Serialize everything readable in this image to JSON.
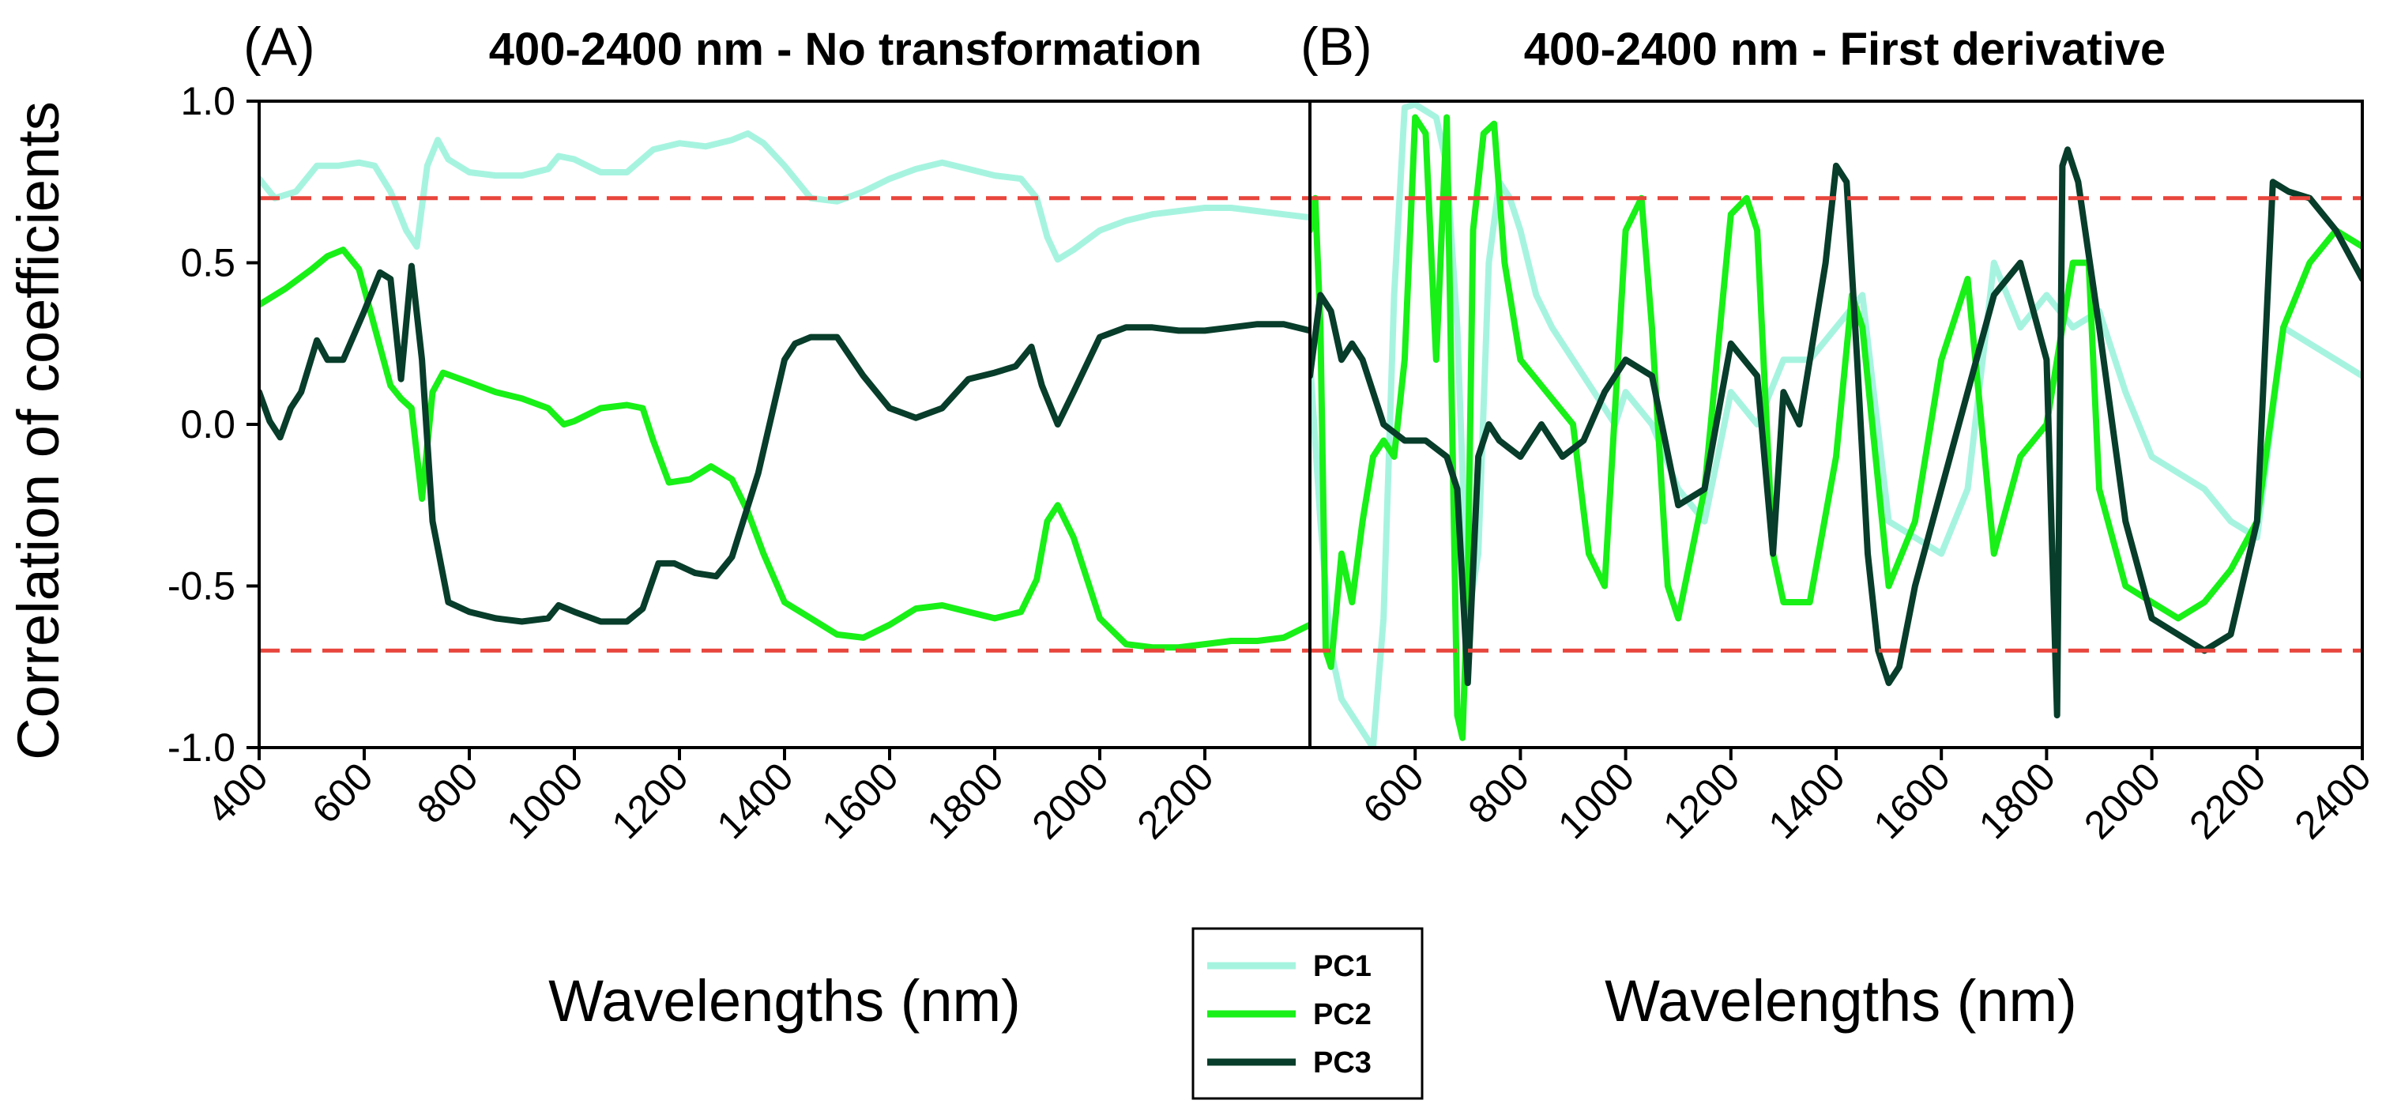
{
  "colors": {
    "PC1": "#a6f4e0",
    "PC2": "#18f018",
    "PC3": "#073d2a",
    "threshold": "#e8453c"
  },
  "ylabel": "Correlation of coefficients",
  "legend": {
    "placement": "bottom-center",
    "entries": [
      "PC1",
      "PC2",
      "PC3"
    ]
  },
  "chart_data": [
    {
      "type": "line",
      "panel_letter": "(A)",
      "title": "400-2400 nm - No transformation",
      "xlabel": "Wavelengths (nm)",
      "ylabel": "Correlation of coefficients",
      "xlim": [
        400,
        2400
      ],
      "ylim": [
        -1.0,
        1.0
      ],
      "xticks": [
        400,
        600,
        800,
        1000,
        1200,
        1400,
        1600,
        1800,
        2000,
        2200
      ],
      "yticks": [
        1.0,
        0.5,
        0.0,
        -0.5,
        -1.0
      ],
      "ytick_labels": [
        "1.0",
        "0.5",
        "0.0",
        "-0.5",
        "-1.0"
      ],
      "thresholds": [
        0.7,
        -0.7
      ],
      "grid": false,
      "series": [
        {
          "name": "PC1",
          "x": [
            400,
            430,
            470,
            510,
            550,
            590,
            620,
            650,
            680,
            700,
            720,
            740,
            760,
            800,
            850,
            900,
            950,
            970,
            1000,
            1050,
            1100,
            1150,
            1200,
            1250,
            1300,
            1330,
            1360,
            1400,
            1450,
            1500,
            1550,
            1600,
            1650,
            1700,
            1750,
            1800,
            1850,
            1880,
            1900,
            1920,
            1950,
            2000,
            2050,
            2100,
            2150,
            2200,
            2250,
            2300,
            2350,
            2400
          ],
          "y": [
            0.76,
            0.7,
            0.72,
            0.8,
            0.8,
            0.81,
            0.8,
            0.72,
            0.6,
            0.55,
            0.8,
            0.88,
            0.82,
            0.78,
            0.77,
            0.77,
            0.79,
            0.83,
            0.82,
            0.78,
            0.78,
            0.85,
            0.87,
            0.86,
            0.88,
            0.9,
            0.87,
            0.8,
            0.7,
            0.69,
            0.72,
            0.76,
            0.79,
            0.81,
            0.79,
            0.77,
            0.76,
            0.7,
            0.58,
            0.51,
            0.54,
            0.6,
            0.63,
            0.65,
            0.66,
            0.67,
            0.67,
            0.66,
            0.65,
            0.64
          ]
        },
        {
          "name": "PC2",
          "x": [
            400,
            450,
            500,
            530,
            560,
            590,
            620,
            650,
            670,
            690,
            710,
            730,
            750,
            800,
            850,
            900,
            950,
            980,
            1000,
            1050,
            1100,
            1130,
            1150,
            1180,
            1220,
            1260,
            1300,
            1330,
            1360,
            1400,
            1450,
            1500,
            1550,
            1600,
            1650,
            1700,
            1750,
            1800,
            1850,
            1880,
            1900,
            1920,
            1950,
            2000,
            2050,
            2100,
            2150,
            2200,
            2250,
            2300,
            2350,
            2400
          ],
          "y": [
            0.37,
            0.42,
            0.48,
            0.52,
            0.54,
            0.48,
            0.3,
            0.12,
            0.08,
            0.05,
            -0.23,
            0.1,
            0.16,
            0.13,
            0.1,
            0.08,
            0.05,
            0.0,
            0.01,
            0.05,
            0.06,
            0.05,
            -0.05,
            -0.18,
            -0.17,
            -0.13,
            -0.17,
            -0.27,
            -0.4,
            -0.55,
            -0.6,
            -0.65,
            -0.66,
            -0.62,
            -0.57,
            -0.56,
            -0.58,
            -0.6,
            -0.58,
            -0.48,
            -0.3,
            -0.25,
            -0.35,
            -0.6,
            -0.68,
            -0.69,
            -0.69,
            -0.68,
            -0.67,
            -0.67,
            -0.66,
            -0.62
          ]
        },
        {
          "name": "PC3",
          "x": [
            400,
            420,
            440,
            460,
            480,
            510,
            530,
            560,
            600,
            630,
            650,
            670,
            690,
            710,
            730,
            760,
            800,
            850,
            900,
            950,
            970,
            1000,
            1050,
            1100,
            1130,
            1160,
            1190,
            1230,
            1270,
            1300,
            1350,
            1400,
            1420,
            1450,
            1500,
            1550,
            1600,
            1650,
            1700,
            1750,
            1800,
            1840,
            1870,
            1890,
            1920,
            1950,
            2000,
            2050,
            2100,
            2150,
            2200,
            2250,
            2300,
            2350,
            2400
          ],
          "y": [
            0.1,
            0.01,
            -0.04,
            0.05,
            0.1,
            0.26,
            0.2,
            0.2,
            0.35,
            0.47,
            0.45,
            0.14,
            0.49,
            0.2,
            -0.3,
            -0.55,
            -0.58,
            -0.6,
            -0.61,
            -0.6,
            -0.56,
            -0.58,
            -0.61,
            -0.61,
            -0.57,
            -0.43,
            -0.43,
            -0.46,
            -0.47,
            -0.41,
            -0.15,
            0.2,
            0.25,
            0.27,
            0.27,
            0.15,
            0.05,
            0.02,
            0.05,
            0.14,
            0.16,
            0.18,
            0.24,
            0.12,
            0.0,
            0.1,
            0.27,
            0.3,
            0.3,
            0.29,
            0.29,
            0.3,
            0.31,
            0.31,
            0.29
          ]
        }
      ]
    },
    {
      "type": "line",
      "panel_letter": "(B)",
      "title": "400-2400 nm - First derivative",
      "xlabel": "Wavelengths (nm)",
      "ylabel": "",
      "xlim": [
        400,
        2400
      ],
      "ylim": [
        -1.0,
        1.0
      ],
      "xticks": [
        600,
        800,
        1000,
        1200,
        1400,
        1600,
        1800,
        2000,
        2200,
        2400
      ],
      "thresholds": [
        0.7,
        -0.7
      ],
      "grid": false,
      "series": [
        {
          "name": "PC1",
          "x": [
            400,
            420,
            440,
            460,
            480,
            500,
            520,
            540,
            560,
            580,
            600,
            620,
            640,
            660,
            680,
            700,
            720,
            740,
            760,
            780,
            800,
            830,
            860,
            900,
            940,
            980,
            1000,
            1050,
            1100,
            1150,
            1200,
            1250,
            1300,
            1350,
            1400,
            1450,
            1500,
            1550,
            1600,
            1650,
            1700,
            1750,
            1800,
            1850,
            1900,
            1950,
            2000,
            2050,
            2100,
            2150,
            2200,
            2250,
            2300,
            2350,
            2400
          ],
          "y": [
            0.2,
            -0.3,
            -0.7,
            -0.85,
            -0.9,
            -0.95,
            -1.0,
            -0.6,
            0.4,
            0.98,
            0.99,
            0.97,
            0.95,
            0.8,
            0.3,
            -0.6,
            -0.4,
            0.5,
            0.75,
            0.7,
            0.6,
            0.4,
            0.3,
            0.2,
            0.1,
            0.0,
            0.1,
            0.0,
            -0.2,
            -0.3,
            0.1,
            0.0,
            0.2,
            0.2,
            0.3,
            0.4,
            -0.3,
            -0.35,
            -0.4,
            -0.2,
            0.5,
            0.3,
            0.4,
            0.3,
            0.35,
            0.1,
            -0.1,
            -0.15,
            -0.2,
            -0.3,
            -0.35,
            0.3,
            0.25,
            0.2,
            0.15
          ]
        },
        {
          "name": "PC2",
          "x": [
            400,
            410,
            420,
            430,
            440,
            460,
            480,
            500,
            520,
            540,
            560,
            580,
            600,
            620,
            640,
            660,
            680,
            690,
            700,
            710,
            730,
            750,
            770,
            800,
            850,
            900,
            930,
            960,
            1000,
            1030,
            1050,
            1080,
            1100,
            1150,
            1200,
            1230,
            1250,
            1280,
            1300,
            1350,
            1400,
            1430,
            1450,
            1500,
            1550,
            1600,
            1650,
            1700,
            1750,
            1800,
            1850,
            1880,
            1900,
            1950,
            2000,
            2050,
            2100,
            2150,
            2200,
            2250,
            2300,
            2350,
            2400
          ],
          "y": [
            0.6,
            0.7,
            0.3,
            -0.7,
            -0.75,
            -0.4,
            -0.55,
            -0.3,
            -0.1,
            -0.05,
            -0.1,
            0.2,
            0.95,
            0.9,
            0.2,
            0.95,
            -0.9,
            -0.97,
            -0.5,
            0.6,
            0.9,
            0.93,
            0.5,
            0.2,
            0.1,
            0.0,
            -0.4,
            -0.5,
            0.6,
            0.7,
            0.3,
            -0.5,
            -0.6,
            -0.2,
            0.65,
            0.7,
            0.6,
            -0.4,
            -0.55,
            -0.55,
            -0.1,
            0.4,
            0.3,
            -0.5,
            -0.3,
            0.2,
            0.45,
            -0.4,
            -0.1,
            0.0,
            0.5,
            0.5,
            -0.2,
            -0.5,
            -0.55,
            -0.6,
            -0.55,
            -0.45,
            -0.3,
            0.3,
            0.5,
            0.6,
            0.55
          ]
        },
        {
          "name": "PC3",
          "x": [
            400,
            420,
            440,
            460,
            480,
            500,
            540,
            580,
            620,
            660,
            680,
            700,
            720,
            740,
            760,
            800,
            840,
            880,
            920,
            960,
            1000,
            1050,
            1100,
            1150,
            1200,
            1250,
            1280,
            1300,
            1330,
            1360,
            1380,
            1400,
            1420,
            1440,
            1460,
            1480,
            1500,
            1520,
            1550,
            1600,
            1650,
            1700,
            1750,
            1800,
            1820,
            1830,
            1840,
            1860,
            1900,
            1950,
            2000,
            2050,
            2100,
            2150,
            2200,
            2230,
            2260,
            2300,
            2350,
            2400
          ],
          "y": [
            0.15,
            0.4,
            0.35,
            0.2,
            0.25,
            0.2,
            0.0,
            -0.05,
            -0.05,
            -0.1,
            -0.2,
            -0.8,
            -0.1,
            0.0,
            -0.05,
            -0.1,
            0.0,
            -0.1,
            -0.05,
            0.1,
            0.2,
            0.15,
            -0.25,
            -0.2,
            0.25,
            0.15,
            -0.4,
            0.1,
            0.0,
            0.3,
            0.5,
            0.8,
            0.75,
            0.2,
            -0.4,
            -0.7,
            -0.8,
            -0.75,
            -0.5,
            -0.2,
            0.1,
            0.4,
            0.5,
            0.2,
            -0.9,
            0.8,
            0.85,
            0.75,
            0.3,
            -0.3,
            -0.6,
            -0.65,
            -0.7,
            -0.65,
            -0.3,
            0.75,
            0.72,
            0.7,
            0.6,
            0.45
          ]
        }
      ]
    }
  ]
}
